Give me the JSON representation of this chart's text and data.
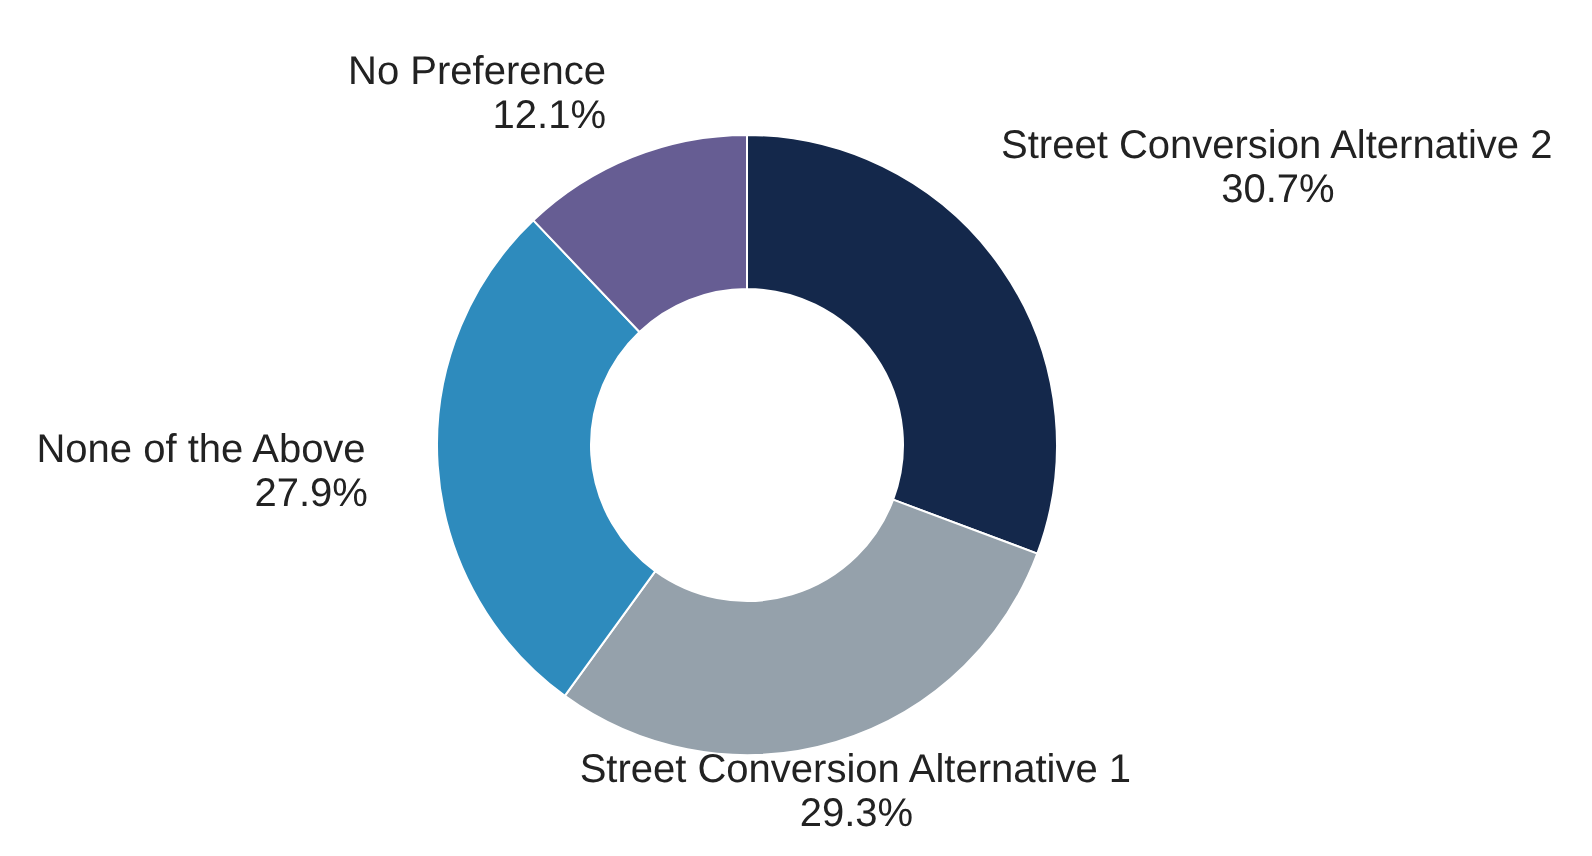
{
  "chart_data": {
    "type": "donut",
    "categories": [
      "Street Conversion Alternative 2",
      "Street Conversion Alternative 1",
      "None of the Above",
      "No Preference"
    ],
    "values": [
      30.7,
      29.3,
      27.9,
      12.1
    ],
    "value_labels": [
      "30.7%",
      "29.3%",
      "27.9%",
      "12.1%"
    ],
    "colors": [
      "#14284b",
      "#95a1ab",
      "#2e8bbd",
      "#665d93"
    ]
  }
}
